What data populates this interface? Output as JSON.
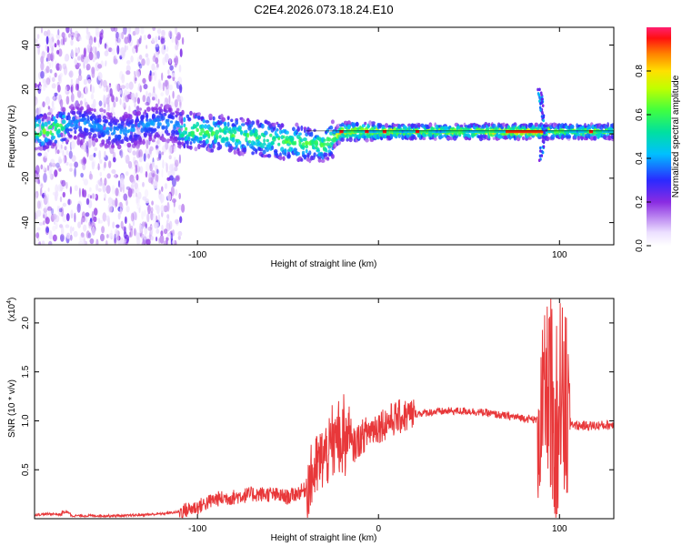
{
  "title": "C2E4.2026.073.18.24.E10",
  "chart_data": [
    {
      "type": "heatmap",
      "xlabel": "Height of straight line (km)",
      "ylabel": "Frequency (Hz)",
      "xlim": [
        -190,
        130
      ],
      "ylim": [
        -50,
        48
      ],
      "x_ticks": [
        -100,
        0,
        100
      ],
      "x_tick_labels": [
        "-100",
        "",
        "100"
      ],
      "y_ticks": [
        -40,
        -20,
        0,
        20,
        40
      ],
      "y_tick_labels": [
        "-40",
        "-20",
        "0",
        "20",
        "40"
      ],
      "colorbar": {
        "label": "Normalized spectral amplitude",
        "range": [
          0,
          1
        ],
        "ticks": [
          0.0,
          0.2,
          0.4,
          0.6,
          0.8
        ],
        "tick_labels": [
          "0.0",
          "0.2",
          "0.4",
          "0.6",
          "0.8"
        ]
      },
      "description_points": [
        {
          "x": -180,
          "y": 3,
          "v": 0.55
        },
        {
          "x": -100,
          "y": 2,
          "v": 0.5
        },
        {
          "x": -60,
          "y": -3,
          "v": 0.45
        },
        {
          "x": -40,
          "y": -6,
          "v": 0.45
        },
        {
          "x": -20,
          "y": 1,
          "v": 0.85
        },
        {
          "x": 0,
          "y": 1,
          "v": 0.9
        },
        {
          "x": 50,
          "y": 1,
          "v": 0.7
        },
        {
          "x": 85,
          "y": 1,
          "v": 0.95
        },
        {
          "x": 120,
          "y": 0,
          "v": 0.55
        }
      ]
    },
    {
      "type": "line",
      "xlabel": "Height of straight line (km)",
      "ylabel": "SNR (10 * v/v)",
      "y_multiplier_label": "(x10",
      "y_multiplier_exp": "4",
      "xlim": [
        -190,
        130
      ],
      "ylim": [
        0,
        2.25
      ],
      "x_ticks": [
        -100,
        0,
        100
      ],
      "x_tick_labels": [
        "-100",
        "0",
        "100"
      ],
      "y_ticks": [
        0.5,
        1.0,
        1.5,
        2.0
      ],
      "y_tick_labels": [
        "0.5",
        "1.0",
        "1.5",
        "2.0"
      ],
      "series": [
        {
          "name": "SNR",
          "color": "#e8383a",
          "x": [
            -190,
            -180,
            -170,
            -160,
            -150,
            -140,
            -130,
            -120,
            -110,
            -100,
            -90,
            -80,
            -70,
            -60,
            -50,
            -40,
            -35,
            -30,
            -25,
            -20,
            -15,
            -10,
            -5,
            0,
            10,
            20,
            30,
            40,
            50,
            60,
            70,
            80,
            90,
            93,
            96,
            98,
            100,
            103,
            106,
            110,
            120,
            130
          ],
          "values": [
            0.04,
            0.05,
            0.03,
            0.03,
            0.03,
            0.03,
            0.04,
            0.05,
            0.07,
            0.12,
            0.2,
            0.22,
            0.25,
            0.25,
            0.22,
            0.3,
            0.5,
            0.65,
            0.7,
            0.78,
            0.72,
            0.82,
            0.9,
            0.95,
            1.03,
            1.07,
            1.09,
            1.1,
            1.1,
            1.08,
            1.05,
            1.03,
            1.0,
            1.3,
            1.6,
            0.3,
            1.5,
            0.95,
            0.98,
            0.95,
            0.95,
            0.96
          ]
        }
      ]
    }
  ]
}
